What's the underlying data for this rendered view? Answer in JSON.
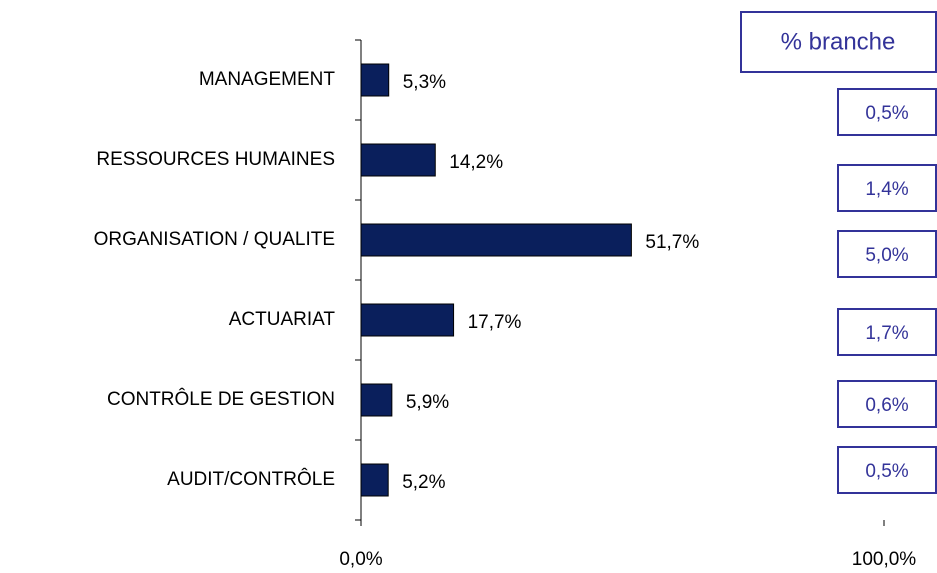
{
  "chart_data": {
    "type": "barh",
    "categories": [
      "MANAGEMENT",
      "RESSOURCES HUMAINES",
      "ORGANISATION / QUALITE",
      "ACTUARIAT",
      "CONTRÔLE DE GESTION",
      "AUDIT/CONTRÔLE"
    ],
    "values": [
      5.3,
      14.2,
      51.7,
      17.7,
      5.9,
      5.2
    ],
    "value_labels": [
      "5,3%",
      "14,2%",
      "51,7%",
      "17,7%",
      "5,9%",
      "5,2%"
    ],
    "color": "#0a1f5c",
    "xlim": [
      0,
      100
    ],
    "xticks": [
      {
        "value": 0,
        "label": "0,0%"
      },
      {
        "value": 100,
        "label": "100,0%"
      }
    ],
    "annotations": {
      "title": "% branche",
      "labels": [
        "0,5%",
        "1,4%",
        "5,0%",
        "1,7%",
        "0,6%",
        "0,5%"
      ]
    }
  }
}
